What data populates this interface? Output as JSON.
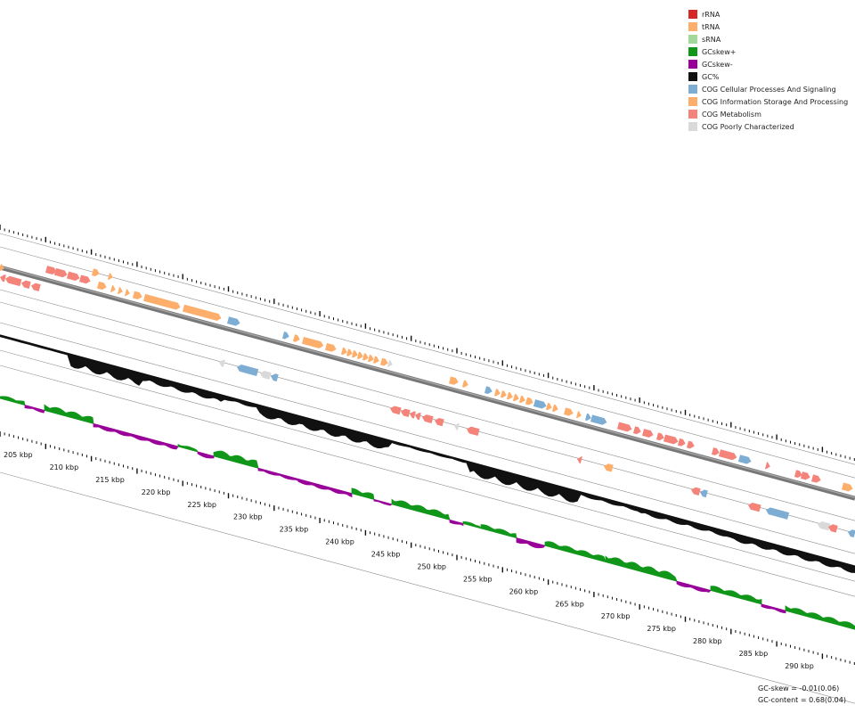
{
  "legend": [
    {
      "label": "rRNA",
      "color": "#d62728"
    },
    {
      "label": "tRNA",
      "color": "#fdae6b"
    },
    {
      "label": "sRNA",
      "color": "#a1d99b"
    },
    {
      "label": "GCskew+",
      "color": "#109618"
    },
    {
      "label": "GCskew-",
      "color": "#990099"
    },
    {
      "label": "GC%",
      "color": "#111111"
    },
    {
      "label": "COG Cellular Processes And Signaling",
      "color": "#7eadd4"
    },
    {
      "label": "COG Information Storage And Processing",
      "color": "#fdae6b"
    },
    {
      "label": "COG Metabolism",
      "color": "#f4837a"
    },
    {
      "label": "COG Poorly Characterized",
      "color": "#d9d9d9"
    }
  ],
  "axis": {
    "labels": [
      "205 kbp",
      "210 kbp",
      "215 kbp",
      "220 kbp",
      "225 kbp",
      "230 kbp",
      "235 kbp",
      "240 kbp",
      "245 kbp",
      "250 kbp",
      "255 kbp",
      "260 kbp",
      "265 kbp",
      "270 kbp",
      "275 kbp",
      "280 kbp",
      "285 kbp",
      "290 kbp"
    ],
    "start_kbp": 205,
    "step_kbp": 5
  },
  "stats": {
    "gc_skew": "GC-skew = -0.01(0.06)",
    "gc_content": "GC-content = 0.68(0.04)"
  }
}
